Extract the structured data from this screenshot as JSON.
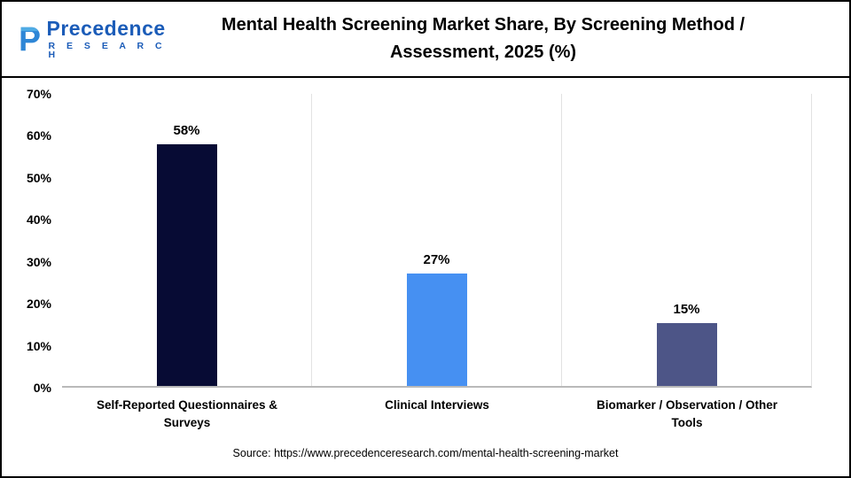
{
  "header": {
    "logo_name": "Precedence",
    "logo_sub": "R E S E A R C H",
    "title_line1": "Mental Health Screening Market Share, By Screening Method /",
    "title_line2": "Assessment, 2025 (%)"
  },
  "chart_data": {
    "type": "bar",
    "title": "Mental Health Screening Market Share, By Screening Method / Assessment, 2025 (%)",
    "categories": [
      "Self-Reported Questionnaires & Surveys",
      "Clinical Interviews",
      "Biomarker / Observation / Other Tools"
    ],
    "values": [
      58,
      27,
      15
    ],
    "value_labels": [
      "58%",
      "27%",
      "15%"
    ],
    "bar_colors": [
      "#070b34",
      "#4690f2",
      "#4d5587"
    ],
    "xlabel": "",
    "ylabel": "",
    "ylim": [
      0,
      70
    ],
    "yticks": [
      "70%",
      "60%",
      "50%",
      "40%",
      "30%",
      "20%",
      "10%",
      "0%"
    ],
    "ytick_values": [
      70,
      60,
      50,
      40,
      30,
      20,
      10,
      0
    ],
    "grid": "vertical category separators only",
    "legend": "none"
  },
  "footer": {
    "source": "Source: https://www.precedenceresearch.com/mental-health-screening-market"
  }
}
